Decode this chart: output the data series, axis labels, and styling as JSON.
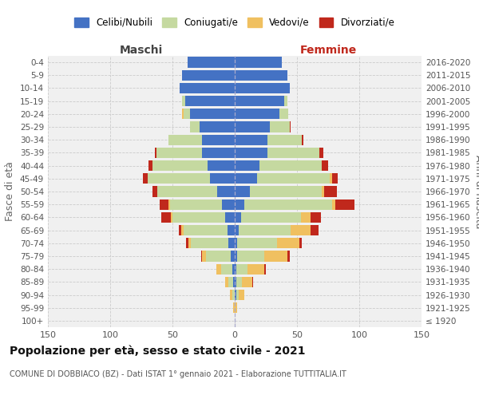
{
  "age_groups": [
    "100+",
    "95-99",
    "90-94",
    "85-89",
    "80-84",
    "75-79",
    "70-74",
    "65-69",
    "60-64",
    "55-59",
    "50-54",
    "45-49",
    "40-44",
    "35-39",
    "30-34",
    "25-29",
    "20-24",
    "15-19",
    "10-14",
    "5-9",
    "0-4"
  ],
  "birth_years": [
    "≤ 1920",
    "1921-1925",
    "1926-1930",
    "1931-1935",
    "1936-1940",
    "1941-1945",
    "1946-1950",
    "1951-1955",
    "1956-1960",
    "1961-1965",
    "1966-1970",
    "1971-1975",
    "1976-1980",
    "1981-1985",
    "1986-1990",
    "1991-1995",
    "1996-2000",
    "2001-2005",
    "2006-2010",
    "2011-2015",
    "2016-2020"
  ],
  "colors": {
    "celibi": "#4472C4",
    "coniugati": "#c5d9a0",
    "vedovi": "#f0c060",
    "divorziati": "#c0281c"
  },
  "males_celibi": [
    0,
    0,
    0,
    1,
    2,
    3,
    5,
    6,
    8,
    10,
    14,
    20,
    22,
    26,
    26,
    28,
    36,
    40,
    44,
    42,
    38
  ],
  "males_coniugati": [
    0,
    0,
    2,
    4,
    9,
    20,
    30,
    35,
    42,
    42,
    48,
    50,
    44,
    37,
    27,
    8,
    5,
    2,
    0,
    0,
    0
  ],
  "males_vedovi": [
    0,
    1,
    2,
    3,
    4,
    3,
    2,
    2,
    1,
    1,
    0,
    0,
    0,
    0,
    0,
    0,
    1,
    0,
    0,
    0,
    0
  ],
  "males_divorziati": [
    0,
    0,
    0,
    0,
    0,
    1,
    2,
    2,
    8,
    7,
    4,
    4,
    3,
    1,
    0,
    0,
    0,
    0,
    0,
    0,
    0
  ],
  "females_celibi": [
    0,
    0,
    1,
    1,
    1,
    2,
    2,
    3,
    5,
    8,
    12,
    18,
    20,
    26,
    26,
    28,
    36,
    40,
    44,
    42,
    38
  ],
  "females_coniugati": [
    0,
    0,
    2,
    5,
    9,
    22,
    32,
    42,
    48,
    70,
    58,
    58,
    50,
    42,
    28,
    16,
    7,
    2,
    0,
    0,
    0
  ],
  "females_vedovi": [
    0,
    2,
    5,
    8,
    14,
    18,
    18,
    16,
    8,
    3,
    2,
    2,
    0,
    0,
    0,
    0,
    0,
    0,
    0,
    0,
    0
  ],
  "females_divorziati": [
    0,
    0,
    0,
    1,
    1,
    2,
    2,
    6,
    8,
    15,
    10,
    5,
    5,
    3,
    1,
    1,
    0,
    0,
    0,
    0,
    0
  ],
  "title": "Popolazione per età, sesso e stato civile - 2021",
  "subtitle": "COMUNE DI DOBBIACO (BZ) - Dati ISTAT 1° gennaio 2021 - Elaborazione TUTTITALIA.IT",
  "label_maschi": "Maschi",
  "label_femmine": "Femmine",
  "ylabel_left": "Fasce di età",
  "xlim": 150,
  "legend_labels": [
    "Celibi/Nubili",
    "Coniugati/e",
    "Vedovi/e",
    "Divorziati/e"
  ],
  "bg_color": "#f0f0f0",
  "grid_color": "#cccccc"
}
